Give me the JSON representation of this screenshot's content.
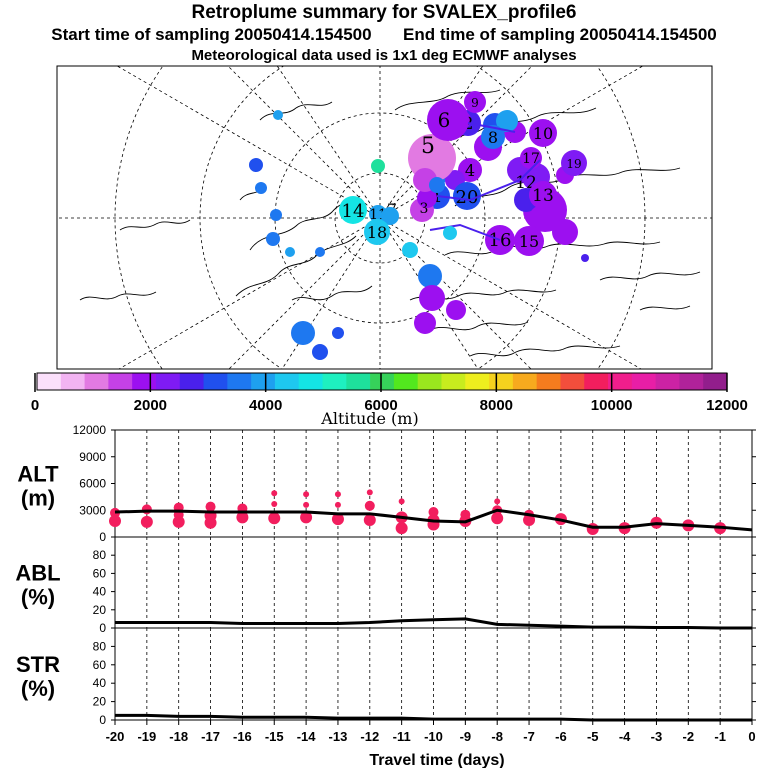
{
  "title": {
    "line1": "Retroplume summary for SVALEX_profile6",
    "line2_start": "Start time of sampling 20050414.154500",
    "line2_end": "End time of sampling 20050414.154500",
    "line3": "Meteorological data used is 1x1 deg ECMWF analyses"
  },
  "colorbar": {
    "ticks": [
      "0",
      "2000",
      "4000",
      "6000",
      "8000",
      "10000",
      "12000"
    ],
    "title": "Altitude (m)",
    "colors": [
      "#fbe0fb",
      "#f2b4f2",
      "#e27ae2",
      "#c541e6",
      "#9c10f0",
      "#7f1bf4",
      "#4a20ec",
      "#2050ee",
      "#1e78f0",
      "#1ea0ef",
      "#1ec8ef",
      "#14e4e4",
      "#1ef0c0",
      "#1ee09c",
      "#36d25a",
      "#52e81e",
      "#9ae61e",
      "#c8ec1e",
      "#eeee1e",
      "#f5d21e",
      "#f7aa1e",
      "#f57c1e",
      "#f24e3c",
      "#f21e5e",
      "#f01e8c",
      "#e81ea6",
      "#cc22a4",
      "#b0229a",
      "#921e8c"
    ]
  },
  "map": {
    "clusters": [
      {
        "label": "1",
        "alt": 3000
      },
      {
        "label": "2",
        "alt": 2000
      },
      {
        "label": "3",
        "alt": 1500
      },
      {
        "label": "4",
        "alt": 2200
      },
      {
        "label": "5",
        "alt": 1200
      },
      {
        "label": "6",
        "alt": 2400
      },
      {
        "label": "7",
        "alt": 2600
      },
      {
        "label": "8",
        "alt": 3100
      },
      {
        "label": "9",
        "alt": 2500
      },
      {
        "label": "10",
        "alt": 2200
      },
      {
        "label": "11",
        "alt": 2100
      },
      {
        "label": "12",
        "alt": 2700
      },
      {
        "label": "13",
        "alt": 2400
      },
      {
        "label": "14",
        "alt": 4200
      },
      {
        "label": "15",
        "alt": 2400
      },
      {
        "label": "16",
        "alt": 2300
      },
      {
        "label": "17",
        "alt": 2500
      },
      {
        "label": "18",
        "alt": 3600
      },
      {
        "label": "19",
        "alt": 2000
      },
      {
        "label": "20",
        "alt": 3200
      }
    ]
  },
  "chart_data": [
    {
      "type": "scatter",
      "panel": "ALT",
      "title_line1": "ALT",
      "title_line2": "(m)",
      "ylim": [
        0,
        12000
      ],
      "yticks": [
        "0",
        "3000",
        "6000",
        "9000",
        "12000"
      ],
      "median_line": {
        "x": [
          -20,
          -19,
          -18,
          -17,
          -16,
          -15,
          -14,
          -13,
          -12,
          -11,
          -10,
          -9,
          -8,
          -7,
          -6,
          -5,
          -4,
          -3,
          -2,
          -1,
          0
        ],
        "y": [
          2800,
          2900,
          2900,
          2800,
          2800,
          2800,
          2800,
          2600,
          2600,
          2200,
          1800,
          1700,
          3000,
          2500,
          1900,
          1100,
          1100,
          1500,
          1300,
          1100,
          800
        ]
      },
      "points": [
        {
          "x": -20,
          "y": 2700
        },
        {
          "x": -20,
          "y": 1800
        },
        {
          "x": -19,
          "y": 3100
        },
        {
          "x": -19,
          "y": 1700
        },
        {
          "x": -18,
          "y": 3300
        },
        {
          "x": -18,
          "y": 2500
        },
        {
          "x": -18,
          "y": 1700
        },
        {
          "x": -17,
          "y": 3400
        },
        {
          "x": -17,
          "y": 2400
        },
        {
          "x": -17,
          "y": 1600
        },
        {
          "x": -16,
          "y": 3200
        },
        {
          "x": -16,
          "y": 2200
        },
        {
          "x": -15,
          "y": 4900
        },
        {
          "x": -15,
          "y": 3700
        },
        {
          "x": -15,
          "y": 2100
        },
        {
          "x": -14,
          "y": 4800
        },
        {
          "x": -14,
          "y": 3600
        },
        {
          "x": -14,
          "y": 2200
        },
        {
          "x": -13,
          "y": 4800
        },
        {
          "x": -13,
          "y": 3600
        },
        {
          "x": -13,
          "y": 2000
        },
        {
          "x": -12,
          "y": 5000
        },
        {
          "x": -12,
          "y": 3500
        },
        {
          "x": -12,
          "y": 1900
        },
        {
          "x": -11,
          "y": 4000
        },
        {
          "x": -11,
          "y": 2200
        },
        {
          "x": -11,
          "y": 1000
        },
        {
          "x": -10,
          "y": 2800
        },
        {
          "x": -10,
          "y": 1900
        },
        {
          "x": -10,
          "y": 1400
        },
        {
          "x": -9,
          "y": 2500
        },
        {
          "x": -9,
          "y": 1800
        },
        {
          "x": -8,
          "y": 4000
        },
        {
          "x": -8,
          "y": 3000
        },
        {
          "x": -8,
          "y": 2100
        },
        {
          "x": -7,
          "y": 2500
        },
        {
          "x": -7,
          "y": 1900
        },
        {
          "x": -6,
          "y": 2000
        },
        {
          "x": -5,
          "y": 900
        },
        {
          "x": -4,
          "y": 1000
        },
        {
          "x": -3,
          "y": 1600
        },
        {
          "x": -2,
          "y": 1300
        },
        {
          "x": -1,
          "y": 1000
        }
      ]
    },
    {
      "type": "line",
      "panel": "ABL",
      "title_line1": "ABL",
      "title_line2": "(%)",
      "ylim": [
        0,
        100
      ],
      "yticks": [
        "0",
        "20",
        "40",
        "60",
        "80"
      ],
      "x": [
        -20,
        -19,
        -18,
        -17,
        -16,
        -15,
        -14,
        -13,
        -12,
        -11,
        -10,
        -9,
        -8,
        -7,
        -6,
        -5,
        -4,
        -3,
        -2,
        -1,
        0
      ],
      "y": [
        6,
        6,
        6,
        6,
        5,
        5,
        5,
        5,
        6,
        8,
        9,
        10,
        4,
        3,
        2,
        1,
        1,
        0.5,
        0.5,
        0,
        0
      ]
    },
    {
      "type": "line",
      "panel": "STR",
      "title_line1": "STR",
      "title_line2": "(%)",
      "ylim": [
        0,
        100
      ],
      "yticks": [
        "0",
        "20",
        "40",
        "60",
        "80"
      ],
      "xlim": [
        -20,
        0
      ],
      "xticks": [
        "-20",
        "-19",
        "-18",
        "-17",
        "-16",
        "-15",
        "-14",
        "-13",
        "-12",
        "-11",
        "-10",
        "-9",
        "-8",
        "-7",
        "-6",
        "-5",
        "-4",
        "-3",
        "-2",
        "-1",
        "0"
      ],
      "xlabel": "Travel time (days)",
      "x": [
        -20,
        -19,
        -18,
        -17,
        -16,
        -15,
        -14,
        -13,
        -12,
        -11,
        -10,
        -9,
        -8,
        -7,
        -6,
        -5,
        -4,
        -3,
        -2,
        -1,
        0
      ],
      "y": [
        5,
        5,
        4,
        4,
        3,
        3,
        3,
        2,
        2,
        2,
        1,
        1,
        1,
        1,
        1,
        0,
        0,
        0,
        0,
        0,
        0
      ]
    }
  ]
}
